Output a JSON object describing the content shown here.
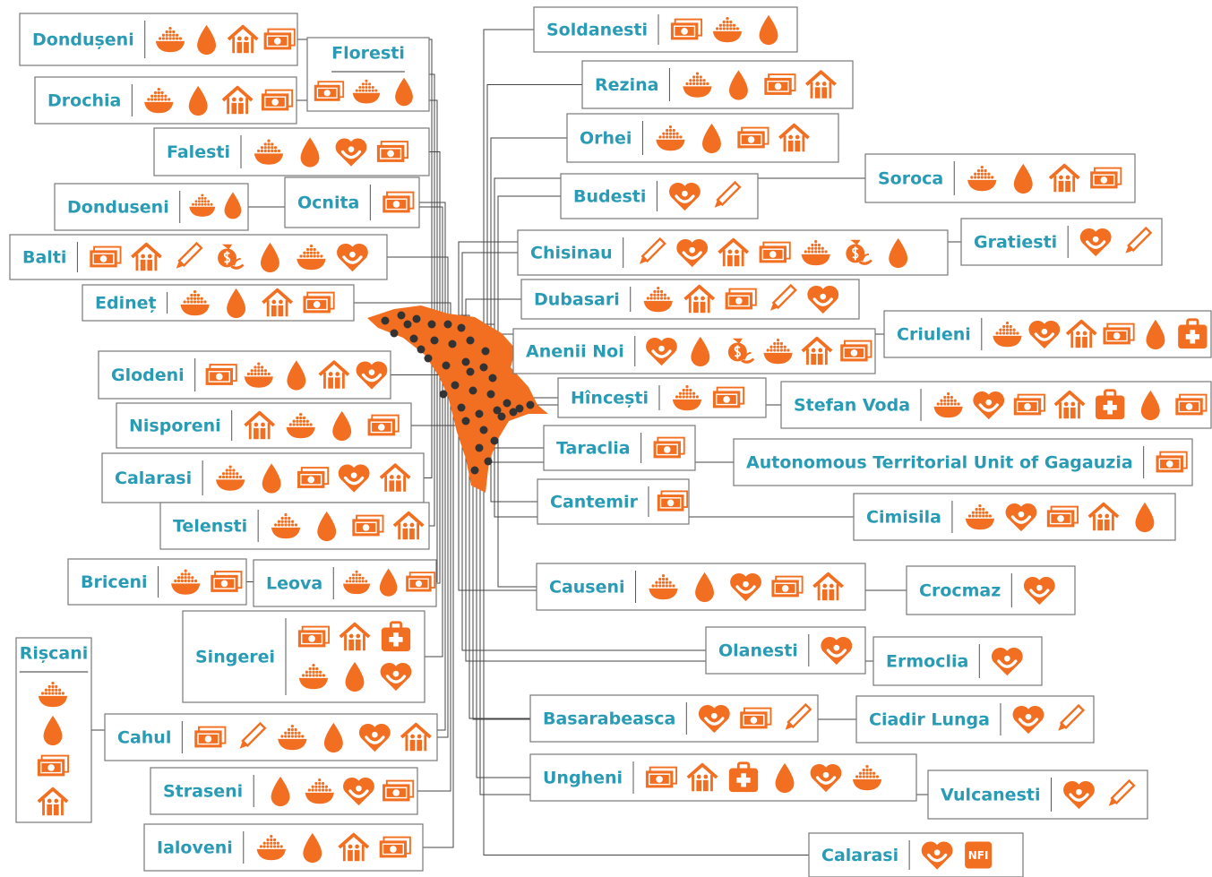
{
  "districts": [
    "Dondușeni",
    "Floresti",
    "Drochia",
    "Falesti",
    "Donduseni",
    "Ocnita",
    "Balti",
    "Edineț",
    "Glodeni",
    "Nisporeni",
    "Calarasi",
    "Telensti",
    "Briceni",
    "Leova",
    "Singerei",
    "Rișcani",
    "Cahul",
    "Straseni",
    "Ialoveni",
    "Soldanesti",
    "Rezina",
    "Orhei",
    "Soroca",
    "Budesti",
    "Gratiesti",
    "Chisinau",
    "Dubasari",
    "Criuleni",
    "Anenii Noi",
    "Hîncești",
    "Stefan Voda",
    "Taraclia",
    "Autonomous Territorial Unit of Gagauzia",
    "Cantemir",
    "Cimisila",
    "Causeni",
    "Crocmaz",
    "Olanesti",
    "Ermoclia",
    "Basarabeasca",
    "Ciadir Lunga",
    "Ungheni",
    "Vulcanesti",
    "Calarasi"
  ],
  "nfi_label": "NFI"
}
